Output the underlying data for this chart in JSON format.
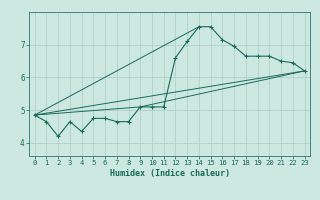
{
  "xlabel": "Humidex (Indice chaleur)",
  "bg_color": "#cce8e0",
  "grid_color": "#aaccc4",
  "line_color": "#1a6b5a",
  "spine_color": "#2a7a68",
  "xmin": -0.5,
  "xmax": 23.5,
  "ymin": 3.6,
  "ymax": 8.0,
  "yticks": [
    4,
    5,
    6,
    7
  ],
  "xticks": [
    0,
    1,
    2,
    3,
    4,
    5,
    6,
    7,
    8,
    9,
    10,
    11,
    12,
    13,
    14,
    15,
    16,
    17,
    18,
    19,
    20,
    21,
    22,
    23
  ],
  "series1_x": [
    0,
    1,
    2,
    3,
    4,
    5,
    6,
    7,
    8,
    9,
    10,
    11,
    12,
    13,
    14,
    15,
    16,
    17,
    18,
    19,
    20,
    21,
    22,
    23
  ],
  "series1_y": [
    4.85,
    4.65,
    4.2,
    4.65,
    4.35,
    4.75,
    4.75,
    4.65,
    4.65,
    5.1,
    5.1,
    5.1,
    6.6,
    7.1,
    7.55,
    7.55,
    7.15,
    6.95,
    6.65,
    6.65,
    6.65,
    6.5,
    6.45,
    6.2
  ],
  "series2_x": [
    0,
    23
  ],
  "series2_y": [
    4.85,
    6.2
  ],
  "series3_x": [
    0,
    14
  ],
  "series3_y": [
    4.85,
    7.55
  ],
  "series4_x": [
    0,
    9,
    23
  ],
  "series4_y": [
    4.85,
    5.1,
    6.2
  ]
}
